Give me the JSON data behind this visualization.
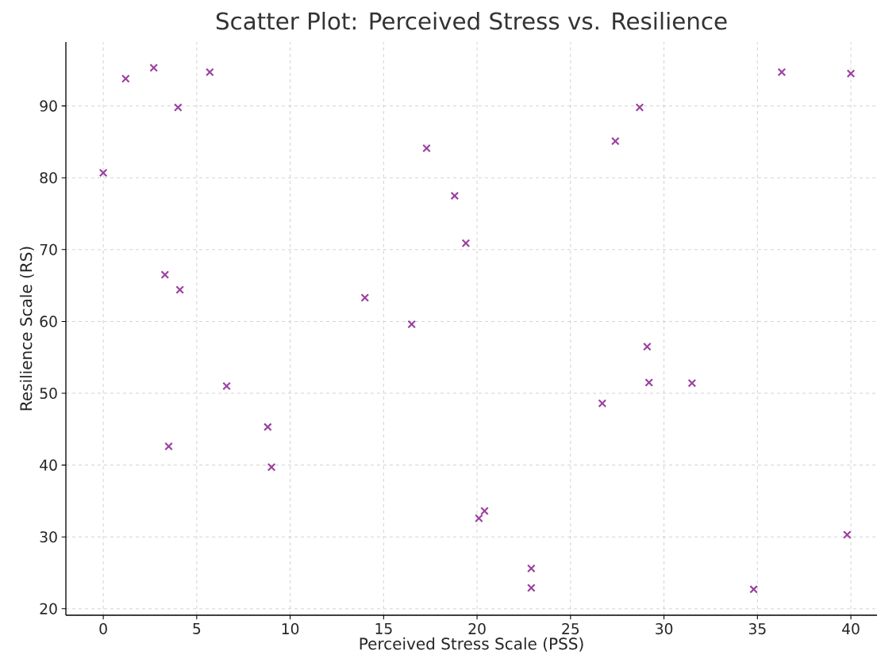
{
  "chart_data": {
    "type": "scatter",
    "title": "Scatter Plot: Perceived Stress vs. Resilience",
    "xlabel": "Perceived Stress Scale (PSS)",
    "ylabel": "Resilience Scale (RS)",
    "x": [
      0,
      1.2,
      2.7,
      4.0,
      5.7,
      3.3,
      4.1,
      3.5,
      6.6,
      8.8,
      9.0,
      14.0,
      16.5,
      17.3,
      18.8,
      19.4,
      20.1,
      20.4,
      22.9,
      22.9,
      26.7,
      27.4,
      28.7,
      29.1,
      29.2,
      31.5,
      34.8,
      36.3,
      40.0,
      39.8
    ],
    "values": [
      80.7,
      93.8,
      95.3,
      89.8,
      94.7,
      66.5,
      64.4,
      42.6,
      51.0,
      45.3,
      39.7,
      63.3,
      59.6,
      84.1,
      77.5,
      70.9,
      32.6,
      33.6,
      25.6,
      22.9,
      48.6,
      85.1,
      89.8,
      56.5,
      51.5,
      51.4,
      22.7,
      94.7,
      94.5,
      30.3
    ],
    "color": "#9b3fa0",
    "marker": "cross",
    "grid": true,
    "xlim": [
      -2,
      41.4
    ],
    "ylim": [
      19.1,
      98.9
    ],
    "xticks": [
      0,
      5,
      10,
      15,
      20,
      25,
      30,
      35,
      40
    ],
    "yticks": [
      20,
      30,
      40,
      50,
      60,
      70,
      80,
      90
    ]
  }
}
